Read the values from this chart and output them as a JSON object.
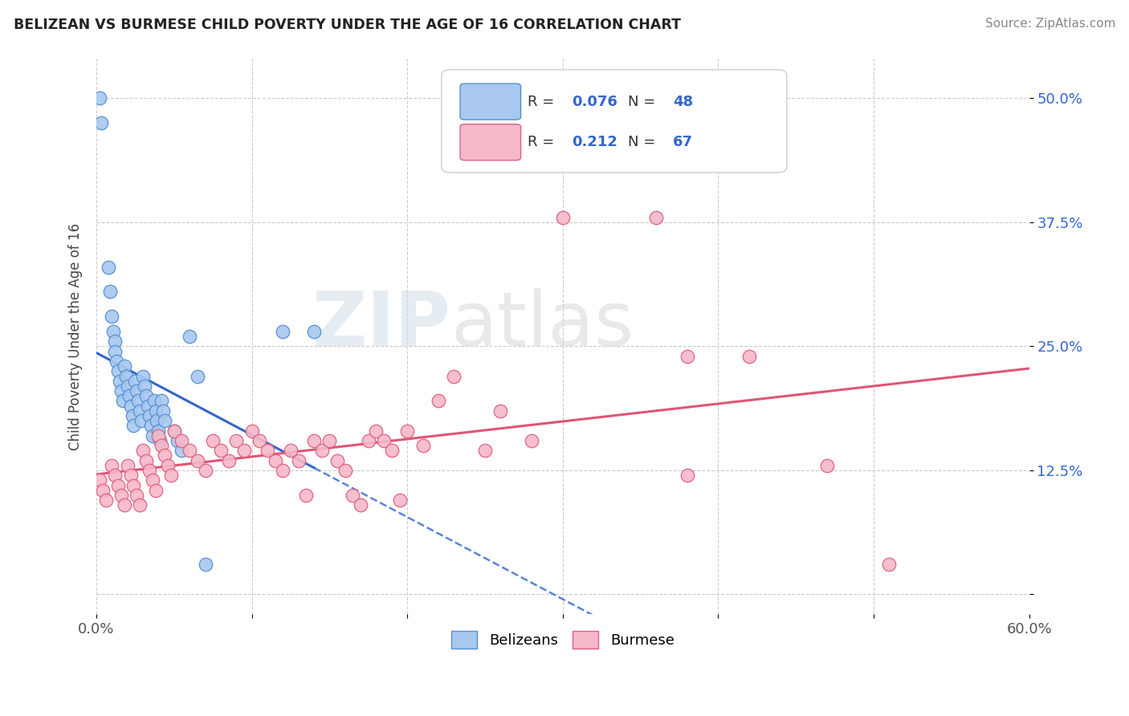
{
  "title": "BELIZEAN VS BURMESE CHILD POVERTY UNDER THE AGE OF 16 CORRELATION CHART",
  "source": "Source: ZipAtlas.com",
  "ylabel": "Child Poverty Under the Age of 16",
  "xlim": [
    0.0,
    0.6
  ],
  "ylim": [
    -0.02,
    0.54
  ],
  "xticks": [
    0.0,
    0.1,
    0.2,
    0.3,
    0.4,
    0.5,
    0.6
  ],
  "xticklabels": [
    "0.0%",
    "",
    "",
    "",
    "",
    "",
    "60.0%"
  ],
  "ytick_positions": [
    0.0,
    0.125,
    0.25,
    0.375,
    0.5
  ],
  "ytick_labels": [
    "",
    "12.5%",
    "25.0%",
    "37.5%",
    "50.0%"
  ],
  "belizean_color": "#a8c8f0",
  "belizean_edge": "#5590d0",
  "burmese_color": "#f5b8c8",
  "burmese_edge": "#e06080",
  "trendline_bel_color": "#3366cc",
  "trendline_bur_color": "#e05575",
  "legend_R_bel": "0.076",
  "legend_N_bel": "48",
  "legend_R_bur": "0.212",
  "legend_N_bur": "67",
  "legend_color": "#3366cc",
  "watermark_zip": "ZIP",
  "watermark_atlas": "atlas",
  "background_color": "#ffffff",
  "grid_color": "#cccccc",
  "belizean_x": [
    0.002,
    0.003,
    0.008,
    0.009,
    0.01,
    0.011,
    0.012,
    0.012,
    0.013,
    0.014,
    0.015,
    0.016,
    0.017,
    0.018,
    0.019,
    0.02,
    0.021,
    0.022,
    0.023,
    0.024,
    0.025,
    0.026,
    0.027,
    0.028,
    0.029,
    0.03,
    0.031,
    0.032,
    0.033,
    0.034,
    0.035,
    0.036,
    0.037,
    0.038,
    0.039,
    0.04,
    0.041,
    0.042,
    0.043,
    0.044,
    0.05,
    0.052,
    0.055,
    0.06,
    0.065,
    0.07,
    0.12,
    0.14
  ],
  "belizean_y": [
    0.5,
    0.475,
    0.33,
    0.305,
    0.28,
    0.265,
    0.255,
    0.245,
    0.235,
    0.225,
    0.215,
    0.205,
    0.195,
    0.23,
    0.22,
    0.21,
    0.2,
    0.19,
    0.18,
    0.17,
    0.215,
    0.205,
    0.195,
    0.185,
    0.175,
    0.22,
    0.21,
    0.2,
    0.19,
    0.18,
    0.17,
    0.16,
    0.195,
    0.185,
    0.175,
    0.165,
    0.155,
    0.195,
    0.185,
    0.175,
    0.165,
    0.155,
    0.145,
    0.26,
    0.22,
    0.03,
    0.265,
    0.265
  ],
  "burmese_x": [
    0.002,
    0.004,
    0.006,
    0.01,
    0.012,
    0.014,
    0.016,
    0.018,
    0.02,
    0.022,
    0.024,
    0.026,
    0.028,
    0.03,
    0.032,
    0.034,
    0.036,
    0.038,
    0.04,
    0.042,
    0.044,
    0.046,
    0.048,
    0.05,
    0.055,
    0.06,
    0.065,
    0.07,
    0.075,
    0.08,
    0.085,
    0.09,
    0.095,
    0.1,
    0.105,
    0.11,
    0.115,
    0.12,
    0.125,
    0.13,
    0.135,
    0.14,
    0.145,
    0.15,
    0.155,
    0.16,
    0.165,
    0.17,
    0.175,
    0.18,
    0.185,
    0.19,
    0.195,
    0.2,
    0.21,
    0.22,
    0.23,
    0.25,
    0.26,
    0.28,
    0.3,
    0.36,
    0.38,
    0.38,
    0.42,
    0.47,
    0.51
  ],
  "burmese_y": [
    0.115,
    0.105,
    0.095,
    0.13,
    0.12,
    0.11,
    0.1,
    0.09,
    0.13,
    0.12,
    0.11,
    0.1,
    0.09,
    0.145,
    0.135,
    0.125,
    0.115,
    0.105,
    0.16,
    0.15,
    0.14,
    0.13,
    0.12,
    0.165,
    0.155,
    0.145,
    0.135,
    0.125,
    0.155,
    0.145,
    0.135,
    0.155,
    0.145,
    0.165,
    0.155,
    0.145,
    0.135,
    0.125,
    0.145,
    0.135,
    0.1,
    0.155,
    0.145,
    0.155,
    0.135,
    0.125,
    0.1,
    0.09,
    0.155,
    0.165,
    0.155,
    0.145,
    0.095,
    0.165,
    0.15,
    0.195,
    0.22,
    0.145,
    0.185,
    0.155,
    0.38,
    0.38,
    0.24,
    0.12,
    0.24,
    0.13,
    0.03
  ]
}
